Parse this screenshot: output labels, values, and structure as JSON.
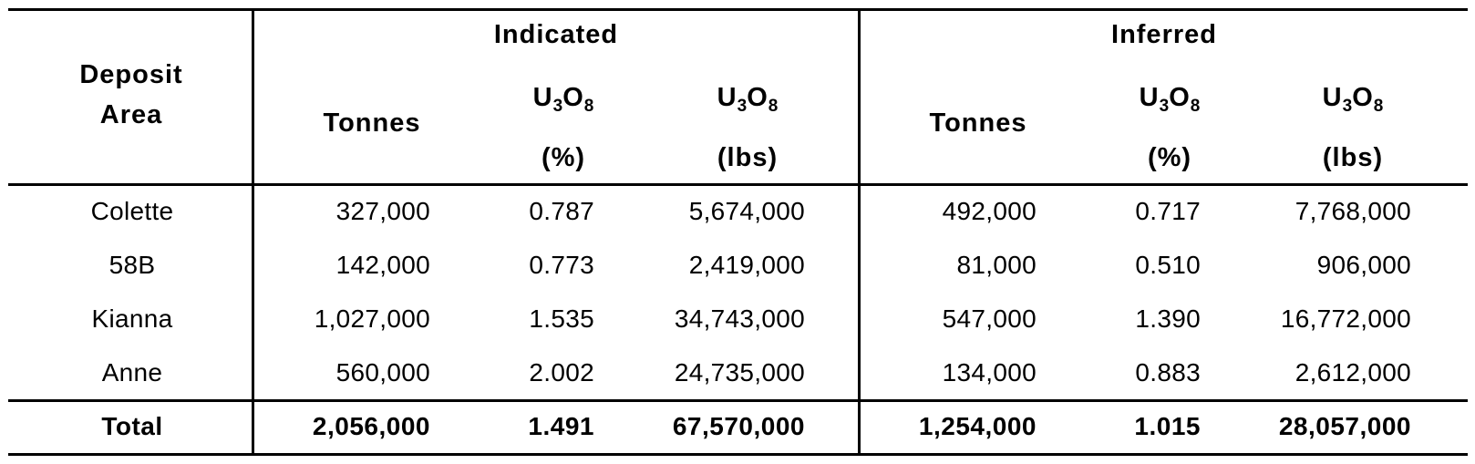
{
  "table": {
    "header": {
      "deposit_line1": "Deposit",
      "deposit_line2": "Area",
      "group_indicated": "Indicated",
      "group_inferred": "Inferred",
      "tonnes": "Tonnes",
      "u3o8_base": "U",
      "u3o8_sub1": "3",
      "u3o8_mid": "O",
      "u3o8_sub2": "8",
      "pct_unit": "(%)",
      "lbs_unit": "(lbs)"
    },
    "rows": [
      {
        "area": "Colette",
        "ind_tonnes": "327,000",
        "ind_pct": "0.787",
        "ind_lbs": "5,674,000",
        "inf_tonnes": "492,000",
        "inf_pct": "0.717",
        "inf_lbs": "7,768,000"
      },
      {
        "area": "58B",
        "ind_tonnes": "142,000",
        "ind_pct": "0.773",
        "ind_lbs": "2,419,000",
        "inf_tonnes": "81,000",
        "inf_pct": "0.510",
        "inf_lbs": "906,000"
      },
      {
        "area": "Kianna",
        "ind_tonnes": "1,027,000",
        "ind_pct": "1.535",
        "ind_lbs": "34,743,000",
        "inf_tonnes": "547,000",
        "inf_pct": "1.390",
        "inf_lbs": "16,772,000"
      },
      {
        "area": "Anne",
        "ind_tonnes": "560,000",
        "ind_pct": "2.002",
        "ind_lbs": "24,735,000",
        "inf_tonnes": "134,000",
        "inf_pct": "0.883",
        "inf_lbs": "2,612,000"
      }
    ],
    "total": {
      "area": "Total",
      "ind_tonnes": "2,056,000",
      "ind_pct": "1.491",
      "ind_lbs": "67,570,000",
      "inf_tonnes": "1,254,000",
      "inf_pct": "1.015",
      "inf_lbs": "28,057,000"
    }
  }
}
